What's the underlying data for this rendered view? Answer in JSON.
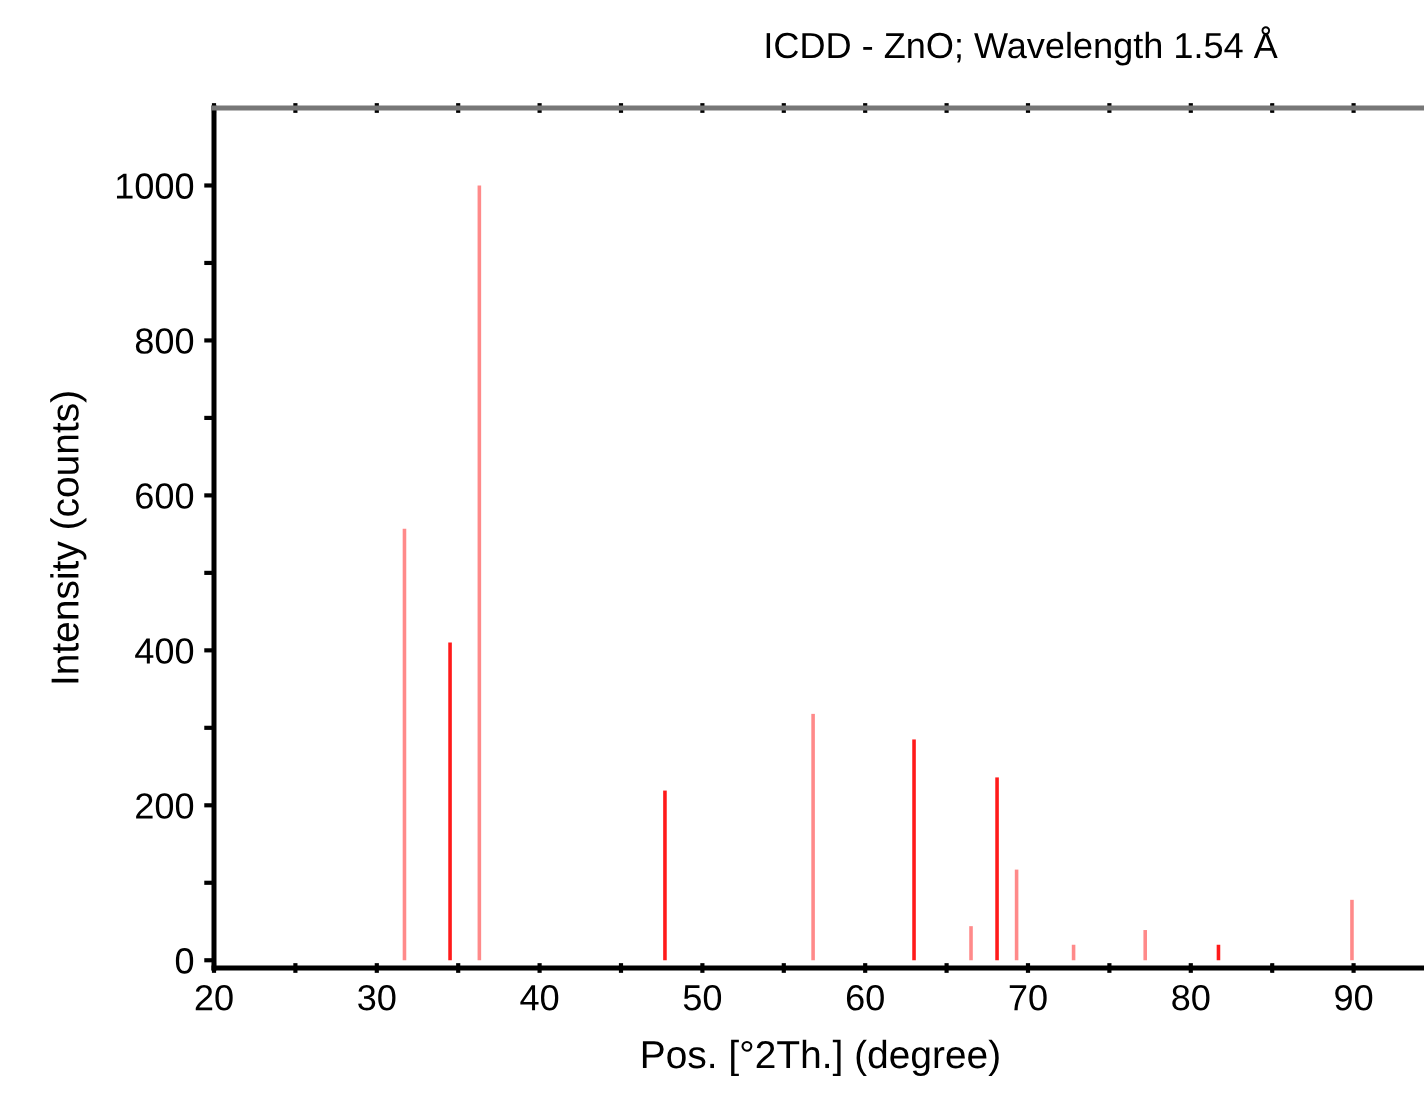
{
  "chart_data": {
    "type": "bar",
    "title": "ICDD - ZnO; Wavelength 1.54 Å",
    "xlabel": "Pos. [°2Th.] (degree)",
    "ylabel": "Intensity (counts)",
    "x": [
      31.7,
      34.5,
      36.3,
      47.7,
      56.8,
      63.0,
      66.5,
      68.1,
      69.3,
      72.8,
      77.2,
      81.7,
      89.9
    ],
    "values": [
      557,
      410,
      1000,
      219,
      318,
      285,
      44,
      236,
      117,
      20,
      39,
      20,
      78
    ],
    "colors": [
      "#ff8a8a",
      "#ff1a1a",
      "#ff8a8a",
      "#ff1a1a",
      "#ff8a8a",
      "#ff1a1a",
      "#ff8a8a",
      "#ff1a1a",
      "#ff8a8a",
      "#ff8a8a",
      "#ff8a8a",
      "#ff1a1a",
      "#ff8a8a"
    ],
    "xlim": [
      20,
      94.5
    ],
    "ylim": [
      -10,
      1100
    ],
    "xticks": [
      20,
      {
        "value": 25,
        "label": null
      },
      30,
      {
        "value": 35,
        "label": null
      },
      40,
      {
        "value": 45,
        "label": null
      },
      50,
      {
        "value": 55,
        "label": null
      },
      60,
      {
        "value": 65,
        "label": null
      },
      70,
      {
        "value": 75,
        "label": null
      },
      80,
      {
        "value": 85,
        "label": null
      },
      90
    ],
    "yticks": [
      0,
      {
        "value": 100,
        "label": null
      },
      200,
      {
        "value": 300,
        "label": null
      },
      400,
      {
        "value": 500,
        "label": null
      },
      600,
      {
        "value": 700,
        "label": null
      },
      800,
      {
        "value": 900,
        "label": null
      },
      1000
    ],
    "grid": false,
    "legend": false
  }
}
